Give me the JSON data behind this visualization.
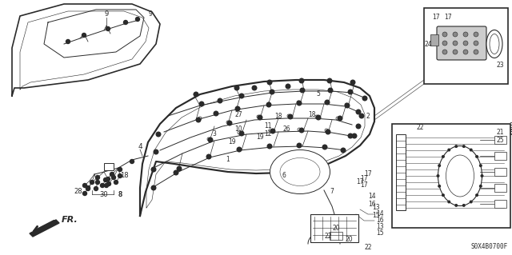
{
  "fig_width": 6.4,
  "fig_height": 3.19,
  "dpi": 100,
  "bg_color": "#ffffff",
  "line_color": "#2a2a2a",
  "part_number": "S0X4B0700F"
}
